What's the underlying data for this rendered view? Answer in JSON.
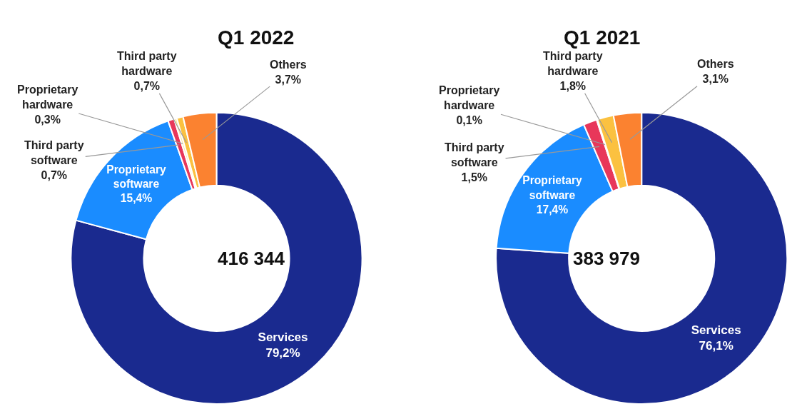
{
  "chart_data": [
    {
      "type": "donut",
      "title": "Q1 2022",
      "categories": [
        "Services",
        "Proprietary software",
        "Third party software",
        "Proprietary hardware",
        "Third party hardware",
        "Others"
      ],
      "values": [
        79.2,
        15.4,
        0.7,
        0.3,
        0.7,
        3.7
      ],
      "value_labels": [
        "79,2%",
        "15,4%",
        "0,7%",
        "0,3%",
        "0,7%",
        "3,7%"
      ],
      "colors": [
        "#1a2a8f",
        "#1a8cff",
        "#e8375a",
        "#fde7a0",
        "#fbc140",
        "#fb8230"
      ],
      "annotations": [
        "416 344"
      ]
    },
    {
      "type": "donut",
      "title": "Q1 2021",
      "categories": [
        "Services",
        "Proprietary software",
        "Third party software",
        "Proprietary hardware",
        "Third party hardware",
        "Others"
      ],
      "values": [
        76.1,
        17.4,
        1.5,
        0.1,
        1.8,
        3.1
      ],
      "value_labels": [
        "76,1%",
        "17,4%",
        "1,5%",
        "0,1%",
        "1,8%",
        "3,1%"
      ],
      "colors": [
        "#1a2a8f",
        "#1a8cff",
        "#e8375a",
        "#fde7a0",
        "#fbc140",
        "#fb8230"
      ],
      "annotations": [
        "383 979"
      ]
    }
  ]
}
